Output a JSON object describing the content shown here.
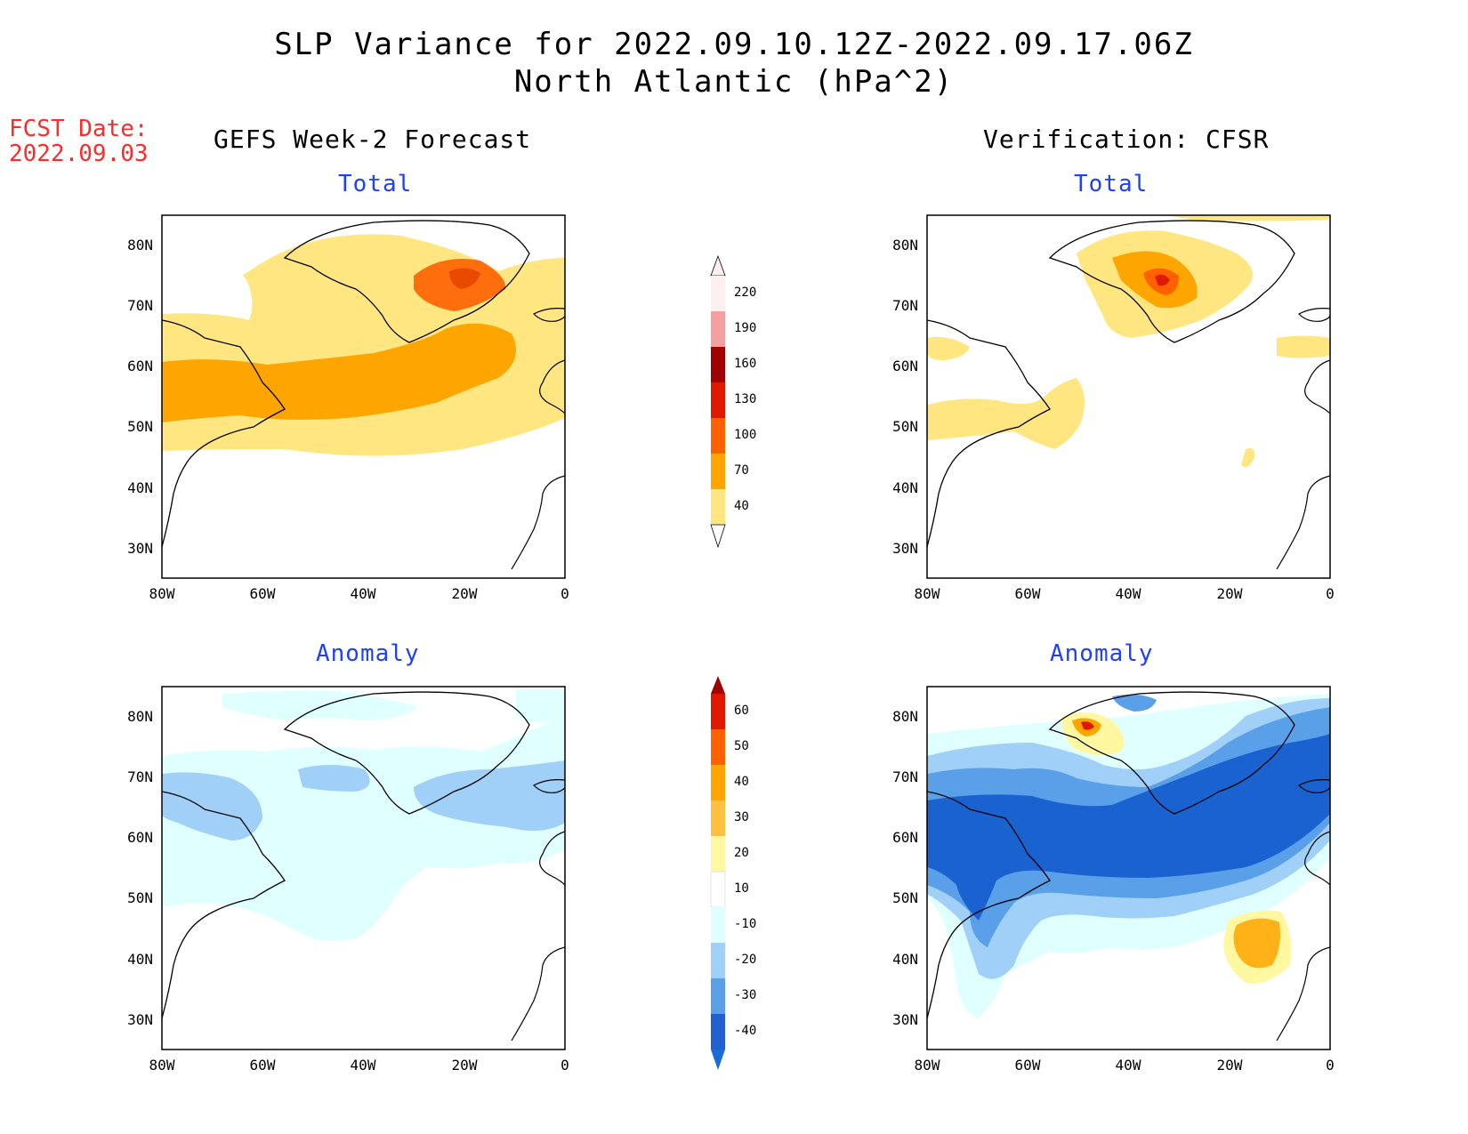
{
  "header": {
    "title_line1": "SLP Variance for 2022.09.10.12Z-2022.09.17.06Z",
    "title_line2": "North Atlantic (hPa^2)"
  },
  "fcst_date": {
    "label": "FCST Date:",
    "value": "2022.09.03"
  },
  "columns": {
    "left_title": "GEFS Week-2 Forecast",
    "right_title": "Verification: CFSR"
  },
  "panels": {
    "gefs_total": {
      "subtitle": "Total"
    },
    "cfsr_total": {
      "subtitle": "Total"
    },
    "gefs_anomaly": {
      "subtitle": "Anomaly"
    },
    "cfsr_anomaly": {
      "subtitle": "Anomaly"
    }
  },
  "axes": {
    "lat_labels": [
      "80N",
      "70N",
      "60N",
      "50N",
      "40N",
      "30N"
    ],
    "lon_labels": [
      "80W",
      "60W",
      "40W",
      "20W",
      "0"
    ]
  },
  "total_colorbar": {
    "levels": [
      "220",
      "190",
      "160",
      "130",
      "100",
      "70",
      "40"
    ],
    "colors": [
      "#fff0f0",
      "#f4a0a0",
      "#a00000",
      "#e01800",
      "#ff6000",
      "#ffa500",
      "#ffe680"
    ]
  },
  "anomaly_colorbar": {
    "levels": [
      "60",
      "50",
      "40",
      "30",
      "20",
      "10",
      "-10",
      "-20",
      "-30",
      "-40"
    ],
    "colors": [
      "#a00000",
      "#e01800",
      "#ff6000",
      "#ffa500",
      "#ffc040",
      "#fff8a0",
      "#ffffff",
      "#e0ffff",
      "#a0d0f8",
      "#5aa0e8",
      "#2060d0",
      "#1a6ad8"
    ]
  },
  "colors": {
    "yellow": "#ffe680",
    "orange": "#ffa500",
    "deep_orange": "#ff6000",
    "red": "#e01800",
    "cyan_light": "#e0ffff",
    "blue_light": "#a0d0f8",
    "blue_mid": "#5aa0e8",
    "blue_dark": "#1a62d0"
  }
}
